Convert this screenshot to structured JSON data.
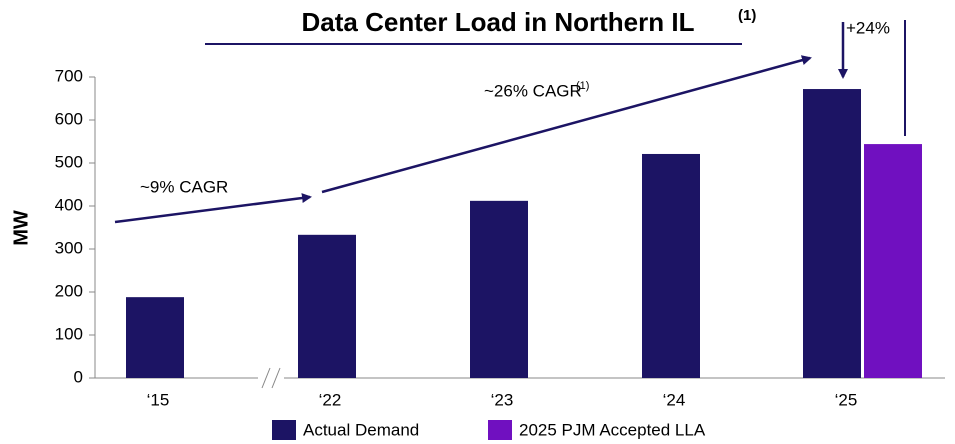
{
  "chart_data": {
    "type": "bar",
    "title": "Data Center Load in Northern IL",
    "title_note": "(1)",
    "y_label": "MW",
    "categories": [
      "‘15",
      "‘22",
      "‘23",
      "‘24",
      "‘25"
    ],
    "series": [
      {
        "name": "Actual Demand",
        "color": "#1c1464",
        "values": [
          188,
          333,
          412,
          521,
          672
        ]
      },
      {
        "name": "2025 PJM Accepted LLA",
        "color": "#7010c0",
        "values": [
          null,
          null,
          null,
          null,
          544
        ]
      }
    ],
    "annotations": [
      {
        "text": "~9% CAGR"
      },
      {
        "text": "~26% CAGR",
        "note": "(1)"
      },
      {
        "text": "+24%"
      }
    ],
    "ylim": [
      0,
      700
    ],
    "yticks": [
      0,
      100,
      200,
      300,
      400,
      500,
      600,
      700
    ],
    "grid": false
  }
}
